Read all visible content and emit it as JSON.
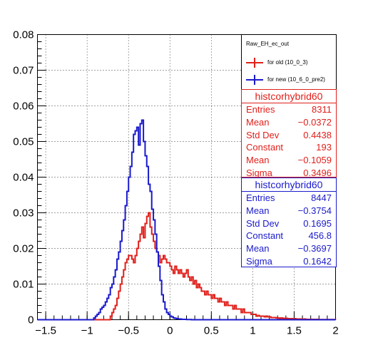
{
  "chart_data": {
    "type": "histogram",
    "title": "",
    "xlabel": "",
    "ylabel": "",
    "xlim": [
      -1.6,
      2.0
    ],
    "ylim": [
      0,
      0.08
    ],
    "grid": true,
    "x_ticks": [
      "−1.5",
      "−1",
      "−0.5",
      "0",
      "0.5",
      "1",
      "1.5",
      "2"
    ],
    "y_ticks": [
      "0",
      "0.01",
      "0.02",
      "0.03",
      "0.04",
      "0.05",
      "0.06",
      "0.07",
      "0.08"
    ],
    "bin_edges_start": -1.6,
    "bin_width": 0.02,
    "legend": {
      "title": "Raw_EH_ec_out",
      "placement": "top-right",
      "entries": [
        "for old (10_0_3)",
        "for new (10_6_0_pre2)"
      ]
    },
    "series": [
      {
        "name": "for old (10_0_3)",
        "color": "#e0201b",
        "bins": [
          [
            -0.72,
            0.001
          ],
          [
            -0.7,
            0.002
          ],
          [
            -0.68,
            0.003
          ],
          [
            -0.66,
            0.004
          ],
          [
            -0.64,
            0.006
          ],
          [
            -0.62,
            0.008
          ],
          [
            -0.6,
            0.01
          ],
          [
            -0.58,
            0.012
          ],
          [
            -0.56,
            0.014
          ],
          [
            -0.54,
            0.016
          ],
          [
            -0.52,
            0.017
          ],
          [
            -0.5,
            0.018
          ],
          [
            -0.48,
            0.018
          ],
          [
            -0.46,
            0.017
          ],
          [
            -0.44,
            0.016
          ],
          [
            -0.42,
            0.018
          ],
          [
            -0.4,
            0.02
          ],
          [
            -0.38,
            0.022
          ],
          [
            -0.36,
            0.024
          ],
          [
            -0.34,
            0.026
          ],
          [
            -0.32,
            0.023
          ],
          [
            -0.3,
            0.027
          ],
          [
            -0.28,
            0.029
          ],
          [
            -0.26,
            0.03
          ],
          [
            -0.24,
            0.026
          ],
          [
            -0.22,
            0.024
          ],
          [
            -0.2,
            0.022
          ],
          [
            -0.18,
            0.02
          ],
          [
            -0.16,
            0.019
          ],
          [
            -0.14,
            0.018
          ],
          [
            -0.12,
            0.016
          ],
          [
            -0.1,
            0.017
          ],
          [
            -0.08,
            0.018
          ],
          [
            -0.06,
            0.017
          ],
          [
            -0.04,
            0.016
          ],
          [
            -0.02,
            0.016
          ],
          [
            0.0,
            0.015
          ],
          [
            0.02,
            0.014
          ],
          [
            0.04,
            0.013
          ],
          [
            0.06,
            0.015
          ],
          [
            0.08,
            0.014
          ],
          [
            0.1,
            0.013
          ],
          [
            0.12,
            0.014
          ],
          [
            0.14,
            0.013
          ],
          [
            0.16,
            0.012
          ],
          [
            0.18,
            0.013
          ],
          [
            0.2,
            0.014
          ],
          [
            0.22,
            0.012
          ],
          [
            0.24,
            0.011
          ],
          [
            0.26,
            0.012
          ],
          [
            0.28,
            0.01
          ],
          [
            0.3,
            0.011
          ],
          [
            0.32,
            0.009
          ],
          [
            0.34,
            0.01
          ],
          [
            0.36,
            0.009
          ],
          [
            0.38,
            0.008
          ],
          [
            0.4,
            0.008
          ],
          [
            0.42,
            0.007
          ],
          [
            0.44,
            0.008
          ],
          [
            0.46,
            0.007
          ],
          [
            0.48,
            0.007
          ],
          [
            0.5,
            0.006
          ],
          [
            0.52,
            0.007
          ],
          [
            0.54,
            0.006
          ],
          [
            0.56,
            0.006
          ],
          [
            0.58,
            0.005
          ],
          [
            0.6,
            0.006
          ],
          [
            0.62,
            0.005
          ],
          [
            0.64,
            0.005
          ],
          [
            0.66,
            0.004
          ],
          [
            0.68,
            0.005
          ],
          [
            0.7,
            0.004
          ],
          [
            0.72,
            0.004
          ],
          [
            0.74,
            0.004
          ],
          [
            0.76,
            0.003
          ],
          [
            0.78,
            0.004
          ],
          [
            0.8,
            0.003
          ],
          [
            0.82,
            0.003
          ],
          [
            0.84,
            0.003
          ],
          [
            0.86,
            0.002
          ],
          [
            0.88,
            0.003
          ],
          [
            0.9,
            0.002
          ],
          [
            0.92,
            0.002
          ],
          [
            0.94,
            0.002
          ],
          [
            0.96,
            0.002
          ],
          [
            0.98,
            0.0015
          ],
          [
            1.0,
            0.0015
          ],
          [
            1.02,
            0.0015
          ],
          [
            1.04,
            0.001
          ],
          [
            1.06,
            0.0012
          ],
          [
            1.08,
            0.001
          ],
          [
            1.1,
            0.001
          ],
          [
            1.12,
            0.001
          ],
          [
            1.14,
            0.0008
          ],
          [
            1.16,
            0.001
          ],
          [
            1.18,
            0.0008
          ],
          [
            1.2,
            0.0008
          ],
          [
            1.22,
            0.0006
          ],
          [
            1.24,
            0.0006
          ],
          [
            1.26,
            0.0006
          ],
          [
            1.28,
            0.0005
          ],
          [
            1.3,
            0.0005
          ],
          [
            1.32,
            0.0004
          ],
          [
            1.34,
            0.0005
          ],
          [
            1.36,
            0.0004
          ],
          [
            1.38,
            0.0004
          ],
          [
            1.4,
            0.0004
          ],
          [
            1.42,
            0.0003
          ],
          [
            1.44,
            0.0003
          ],
          [
            1.46,
            0.0003
          ],
          [
            1.48,
            0.0002
          ],
          [
            1.5,
            0.0003
          ],
          [
            1.52,
            0.0002
          ],
          [
            1.54,
            0.0002
          ],
          [
            1.56,
            0.0002
          ],
          [
            1.58,
            0.0002
          ],
          [
            1.6,
            0.0001
          ],
          [
            1.62,
            0.0002
          ],
          [
            1.64,
            0.0001
          ],
          [
            1.66,
            0.0001
          ],
          [
            1.68,
            0.0001
          ],
          [
            1.7,
            0.0001
          ],
          [
            1.72,
            0.0001
          ],
          [
            1.74,
            0.0001
          ],
          [
            1.76,
            0.0001
          ],
          [
            1.78,
            0.0001
          ],
          [
            1.8,
            5e-05
          ],
          [
            1.82,
            5e-05
          ],
          [
            1.84,
            5e-05
          ],
          [
            1.86,
            5e-05
          ],
          [
            1.88,
            5e-05
          ],
          [
            1.9,
            5e-05
          ],
          [
            1.92,
            5e-05
          ],
          [
            1.94,
            5e-05
          ],
          [
            1.96,
            5e-05
          ],
          [
            1.98,
            5e-05
          ]
        ]
      },
      {
        "name": "for new (10_6_0_pre2)",
        "color": "#1a1acc",
        "bins": [
          [
            -0.92,
            0.0005
          ],
          [
            -0.9,
            0.001
          ],
          [
            -0.88,
            0.0015
          ],
          [
            -0.86,
            0.002
          ],
          [
            -0.84,
            0.003
          ],
          [
            -0.82,
            0.0035
          ],
          [
            -0.8,
            0.004
          ],
          [
            -0.78,
            0.005
          ],
          [
            -0.76,
            0.006
          ],
          [
            -0.74,
            0.007
          ],
          [
            -0.72,
            0.009
          ],
          [
            -0.7,
            0.01
          ],
          [
            -0.68,
            0.012
          ],
          [
            -0.66,
            0.014
          ],
          [
            -0.64,
            0.017
          ],
          [
            -0.62,
            0.019
          ],
          [
            -0.6,
            0.022
          ],
          [
            -0.58,
            0.025
          ],
          [
            -0.56,
            0.028
          ],
          [
            -0.54,
            0.032
          ],
          [
            -0.52,
            0.036
          ],
          [
            -0.5,
            0.04
          ],
          [
            -0.48,
            0.043
          ],
          [
            -0.46,
            0.047
          ],
          [
            -0.44,
            0.052
          ],
          [
            -0.42,
            0.053
          ],
          [
            -0.4,
            0.054
          ],
          [
            -0.38,
            0.049
          ],
          [
            -0.36,
            0.055
          ],
          [
            -0.34,
            0.056
          ],
          [
            -0.32,
            0.05
          ],
          [
            -0.3,
            0.046
          ],
          [
            -0.28,
            0.043
          ],
          [
            -0.26,
            0.038
          ],
          [
            -0.24,
            0.036
          ],
          [
            -0.22,
            0.031
          ],
          [
            -0.2,
            0.028
          ],
          [
            -0.18,
            0.024
          ],
          [
            -0.16,
            0.019
          ],
          [
            -0.14,
            0.015
          ],
          [
            -0.12,
            0.011
          ],
          [
            -0.1,
            0.007
          ],
          [
            -0.08,
            0.005
          ],
          [
            -0.06,
            0.003
          ],
          [
            -0.04,
            0.002
          ],
          [
            -0.02,
            0.0015
          ],
          [
            0.0,
            0.001
          ],
          [
            0.02,
            0.0008
          ],
          [
            0.04,
            0.0005
          ],
          [
            0.06,
            0.0004
          ],
          [
            0.08,
            0.0003
          ],
          [
            0.1,
            0.0002
          ],
          [
            0.12,
            0.0002
          ],
          [
            0.14,
            0.0001
          ],
          [
            0.16,
            0.0001
          ],
          [
            0.18,
            0.0001
          ],
          [
            0.2,
            5e-05
          ],
          [
            0.22,
            5e-05
          ],
          [
            0.24,
            5e-05
          ]
        ]
      }
    ]
  },
  "stats": [
    {
      "title": "histcorhybrid60",
      "color": "#e0201b",
      "rows": [
        {
          "label": "Entries",
          "value": "8311"
        },
        {
          "label": "Mean",
          "value": "−0.0372"
        },
        {
          "label": "Std Dev",
          "value": "0.4438"
        },
        {
          "label": "Constant",
          "value": "193"
        },
        {
          "label": "Mean",
          "value": "−0.1059"
        },
        {
          "label": "Sigma",
          "value": "0.3496"
        }
      ]
    },
    {
      "title": "histcorhybrid60",
      "color": "#1a1acc",
      "rows": [
        {
          "label": "Entries",
          "value": "8447"
        },
        {
          "label": "Mean",
          "value": "−0.3754"
        },
        {
          "label": "Std Dev",
          "value": "0.1695"
        },
        {
          "label": "Constant",
          "value": "456.8"
        },
        {
          "label": "Mean",
          "value": "−0.3697"
        },
        {
          "label": "Sigma",
          "value": "0.1642"
        }
      ]
    }
  ]
}
